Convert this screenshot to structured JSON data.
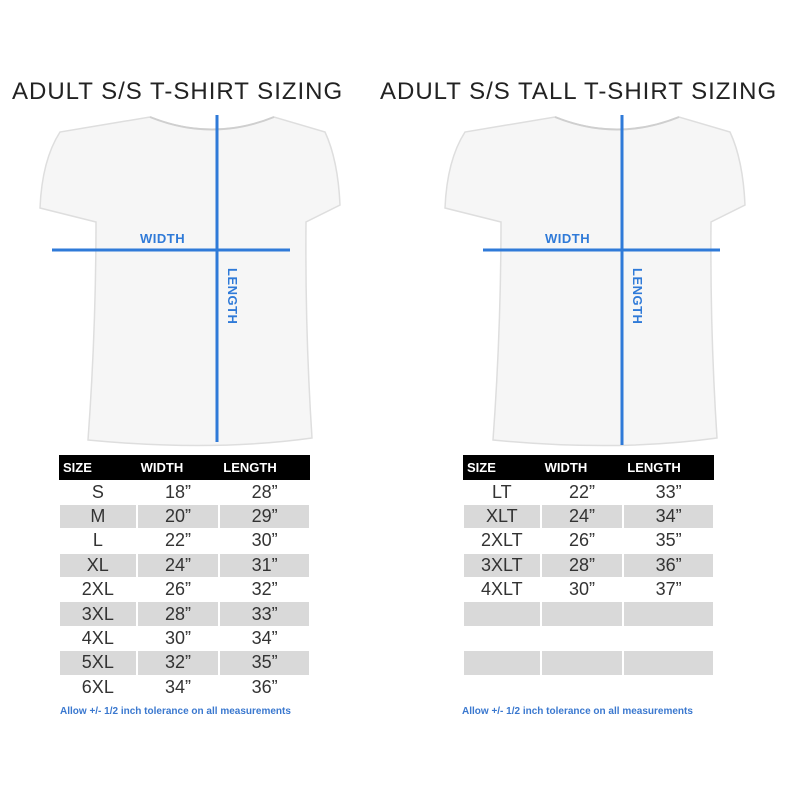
{
  "left": {
    "title": "ADULT S/S T-SHIRT SIZING",
    "width_label": "WIDTH",
    "length_label": "LENGTH",
    "headers": [
      "SIZE",
      "WIDTH",
      "LENGTH"
    ],
    "rows": [
      [
        "S",
        "18”",
        "28”"
      ],
      [
        "M",
        "20”",
        "29”"
      ],
      [
        "L",
        "22”",
        "30”"
      ],
      [
        "XL",
        "24”",
        "31”"
      ],
      [
        "2XL",
        "26”",
        "32”"
      ],
      [
        "3XL",
        "28”",
        "33”"
      ],
      [
        "4XL",
        "30”",
        "34”"
      ],
      [
        "5XL",
        "32”",
        "35”"
      ],
      [
        "6XL",
        "34”",
        "36”"
      ]
    ],
    "note": "Allow +/- 1/2 inch tolerance on all measurements"
  },
  "right": {
    "title": "ADULT S/S TALL T-SHIRT SIZING",
    "width_label": "WIDTH",
    "length_label": "LENGTH",
    "headers": [
      "SIZE",
      "WIDTH",
      "LENGTH"
    ],
    "rows": [
      [
        "LT",
        "22”",
        "33”"
      ],
      [
        "XLT",
        "24”",
        "34”"
      ],
      [
        "2XLT",
        "26”",
        "35”"
      ],
      [
        "3XLT",
        "28”",
        "36”"
      ],
      [
        "4XLT",
        "30”",
        "37”"
      ],
      [
        "",
        "",
        ""
      ],
      [
        "",
        "",
        ""
      ],
      [
        "",
        "",
        ""
      ],
      [
        "",
        "",
        ""
      ]
    ],
    "note": "Allow +/- 1/2 inch tolerance on all measurements"
  },
  "colors": {
    "measure_line": "#2f7ad8",
    "header_bg": "#000000",
    "alt_row": "#d9d9d9"
  }
}
